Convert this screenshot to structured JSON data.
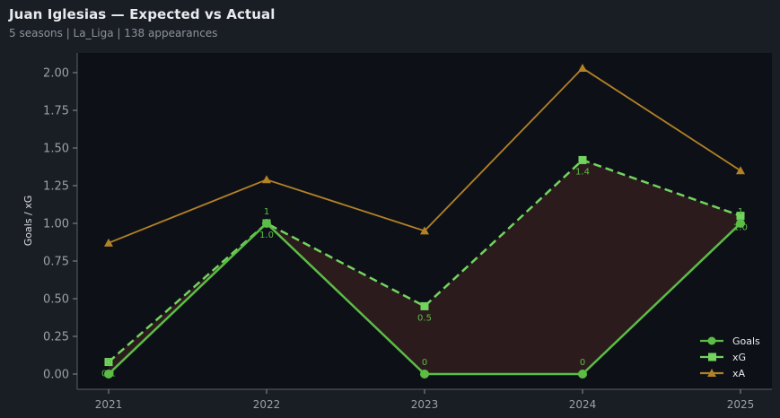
{
  "header": {
    "title": "Juan Iglesias — Expected vs Actual",
    "subtitle": "5 seasons | La_Liga | 138 appearances"
  },
  "colors": {
    "background": "#191d24",
    "plot_background": "#0d1117",
    "goals": "#5bbd45",
    "xg": "#72d35f",
    "xa": "#b38126",
    "fill_between": "#2d1c1e"
  },
  "chart_data": {
    "type": "line",
    "title": "Juan Iglesias — Expected vs Actual",
    "subtitle": "5 seasons | La_Liga | 138 appearances",
    "xlabel": "",
    "ylabel": "Goals / xG",
    "categories": [
      "2021",
      "2022",
      "2023",
      "2024",
      "2025"
    ],
    "ylim": [
      -0.1,
      2.13
    ],
    "yticks": [
      "0.00",
      "0.25",
      "0.50",
      "0.75",
      "1.00",
      "1.25",
      "1.50",
      "1.75",
      "2.00"
    ],
    "grid": false,
    "legend_position": "lower right",
    "series": [
      {
        "name": "Goals",
        "marker": "circle",
        "style": "solid",
        "values": [
          0,
          1,
          0,
          0,
          1
        ],
        "labels": [
          "0",
          "1",
          "0",
          "0",
          "1"
        ]
      },
      {
        "name": "xG",
        "marker": "square",
        "style": "dashed",
        "values": [
          0.08,
          1.0,
          0.45,
          1.42,
          1.05
        ],
        "labels": [
          "0.1",
          "1.0",
          "0.5",
          "1.4",
          "1.0"
        ]
      },
      {
        "name": "xA",
        "marker": "triangle",
        "style": "solid",
        "values": [
          0.87,
          1.29,
          0.95,
          2.03,
          1.35
        ]
      }
    ],
    "annotations": [
      "shaded region between Goals and xG"
    ]
  }
}
